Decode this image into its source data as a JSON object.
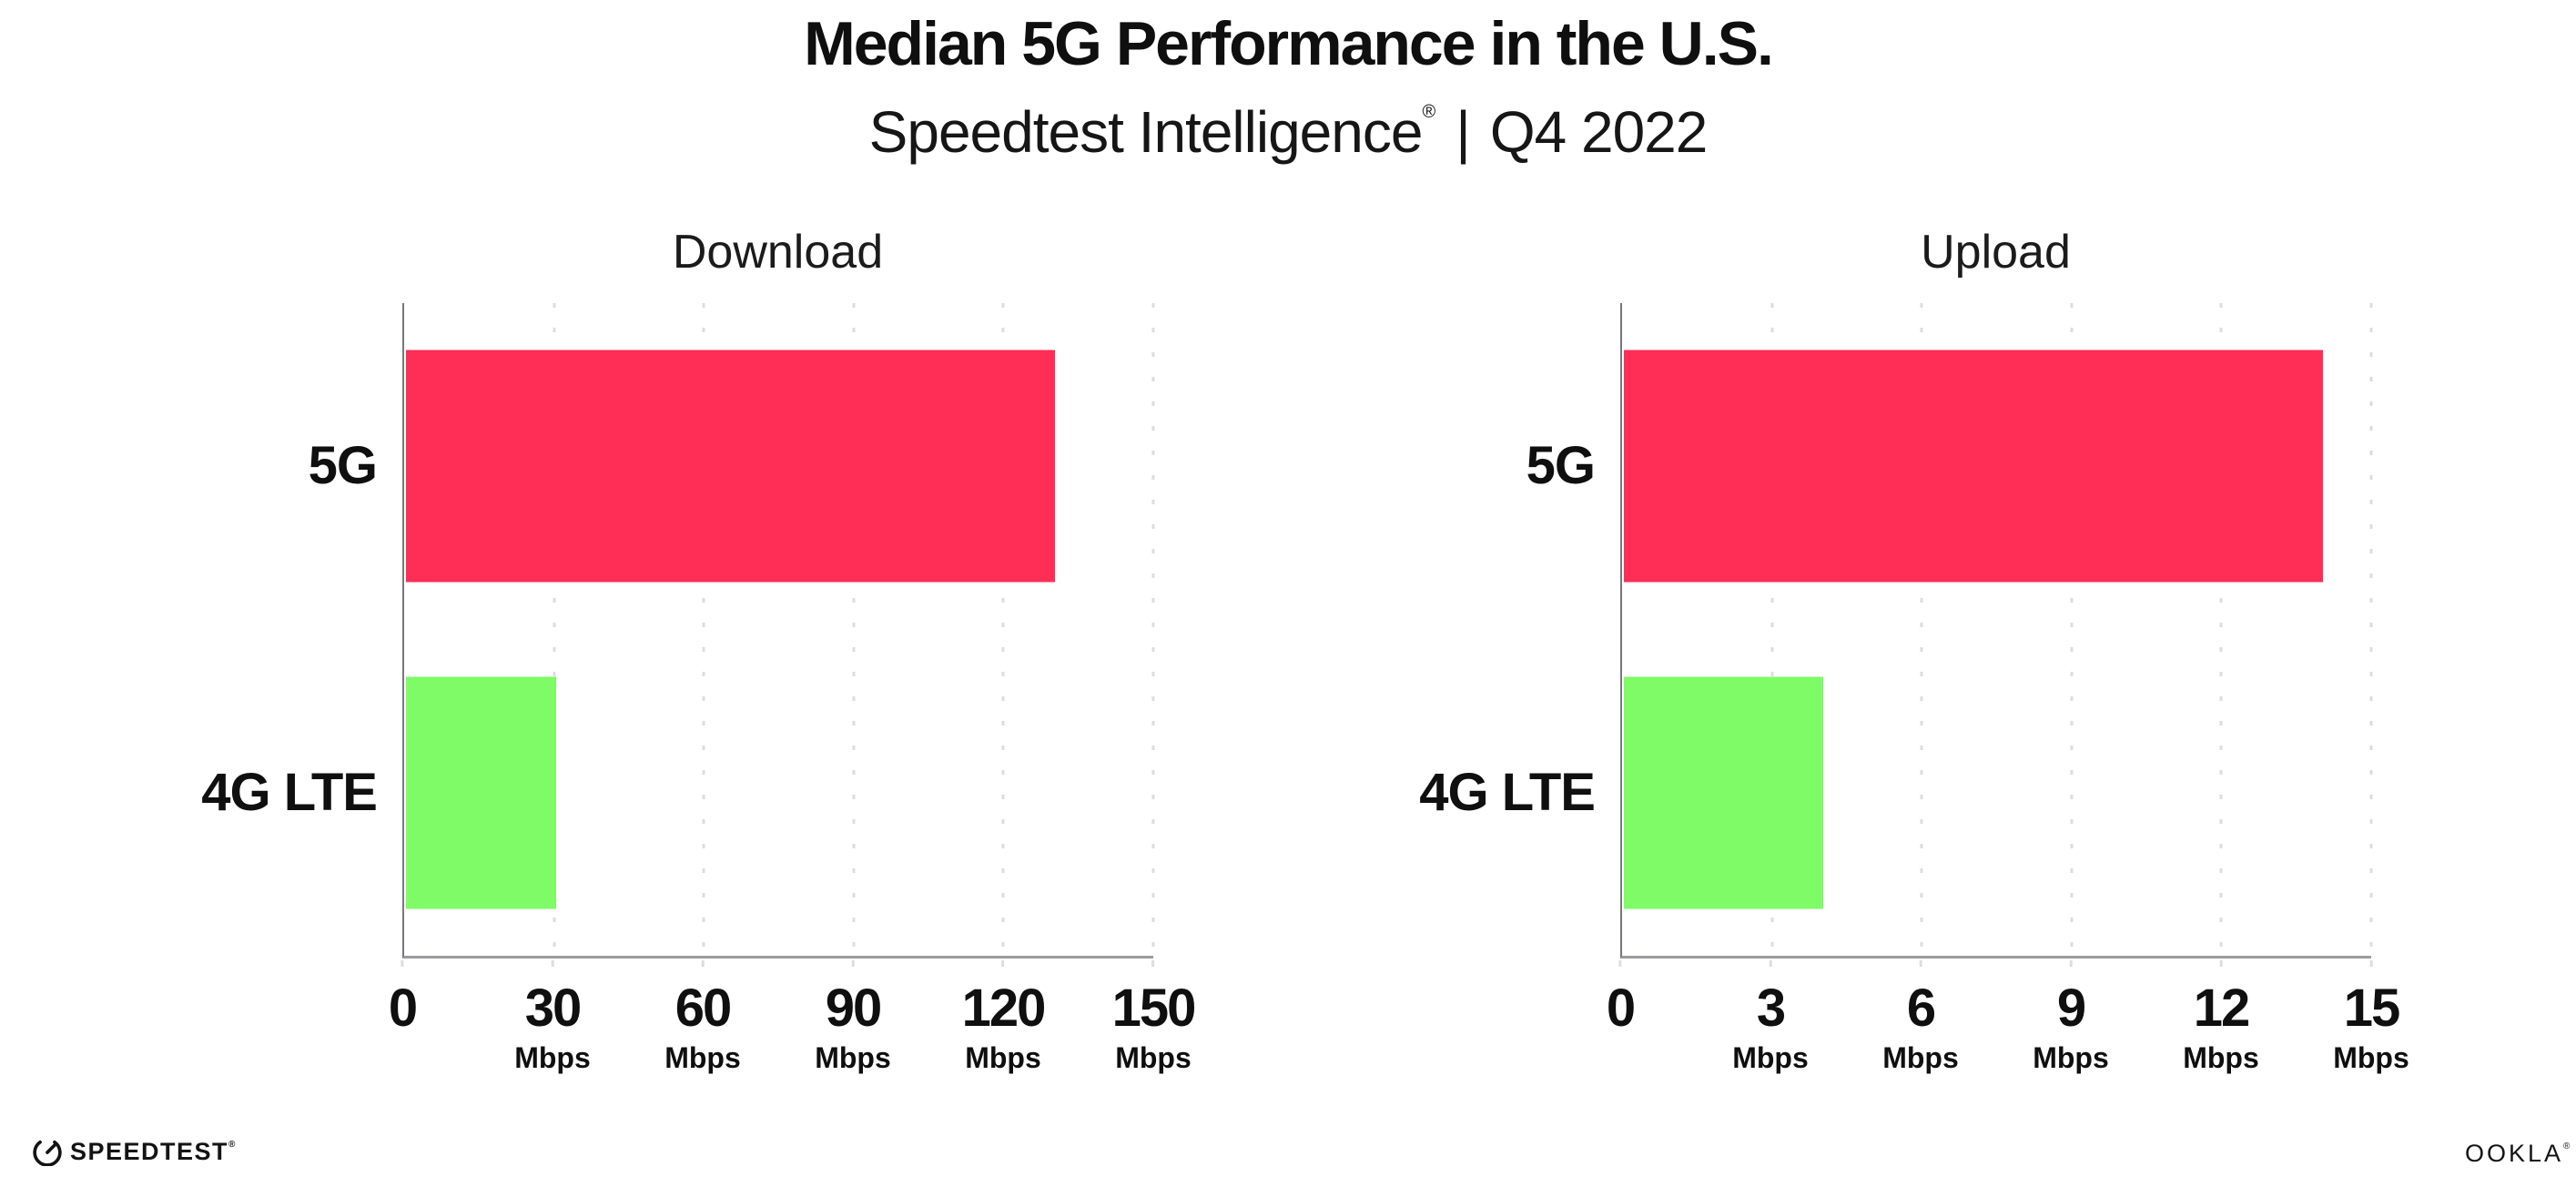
{
  "header": {
    "title": "Median 5G Performance in the U.S.",
    "subtitle": {
      "brand": "Speedtest Intelligence",
      "registered": "®",
      "divider": "|",
      "period": "Q4 2022"
    }
  },
  "chart_data": [
    {
      "type": "bar",
      "orientation": "horizontal",
      "title": "Download",
      "categories": [
        "5G",
        "4G LTE"
      ],
      "values": [
        130,
        30
      ],
      "unit": "Mbps",
      "xlim": [
        0,
        150
      ],
      "xticks": [
        0,
        30,
        60,
        90,
        120,
        150
      ],
      "xtick_unit": "Mbps",
      "grid": "vertical-dotted",
      "legend": "none",
      "bar_colors": [
        "#FF2E56",
        "#7EFB66"
      ]
    },
    {
      "type": "bar",
      "orientation": "horizontal",
      "title": "Upload",
      "categories": [
        "5G",
        "4G LTE"
      ],
      "values": [
        14,
        4
      ],
      "unit": "Mbps",
      "xlim": [
        0,
        15
      ],
      "xticks": [
        0,
        3,
        6,
        9,
        12,
        15
      ],
      "xtick_unit": "Mbps",
      "grid": "vertical-dotted",
      "legend": "none",
      "bar_colors": [
        "#FF2E56",
        "#7EFB66"
      ]
    }
  ],
  "colors": {
    "bar_5g": "#FF2E56",
    "bar_4g_lte": "#7EFB66",
    "axis_x": "#9A9AA0",
    "axis_y": "#77777D",
    "grid_dot": "#DCDCE2",
    "text": "#0F0F0F"
  },
  "footer": {
    "speedtest": {
      "label": "SPEEDTEST",
      "registered": "®",
      "icon": "speedtest-gauge-icon"
    },
    "ookla": {
      "label": "OOKLA",
      "registered": "®"
    }
  }
}
